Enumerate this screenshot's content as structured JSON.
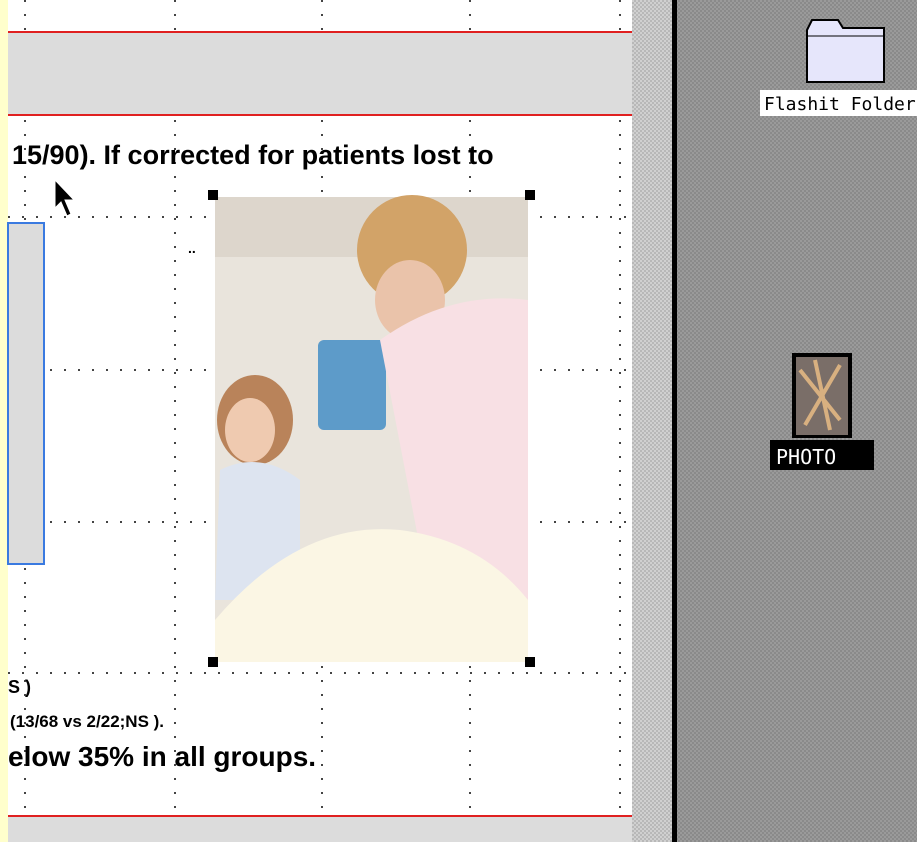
{
  "document": {
    "lines": [
      "15/90). If corrected for patients lost to",
      "S )",
      "(13/68 vs 2/22;NS ).",
      "elow 35% in all groups."
    ]
  },
  "desktop": {
    "icons": [
      {
        "label": "Flashit Folder"
      },
      {
        "label": "PHOTO"
      }
    ]
  }
}
